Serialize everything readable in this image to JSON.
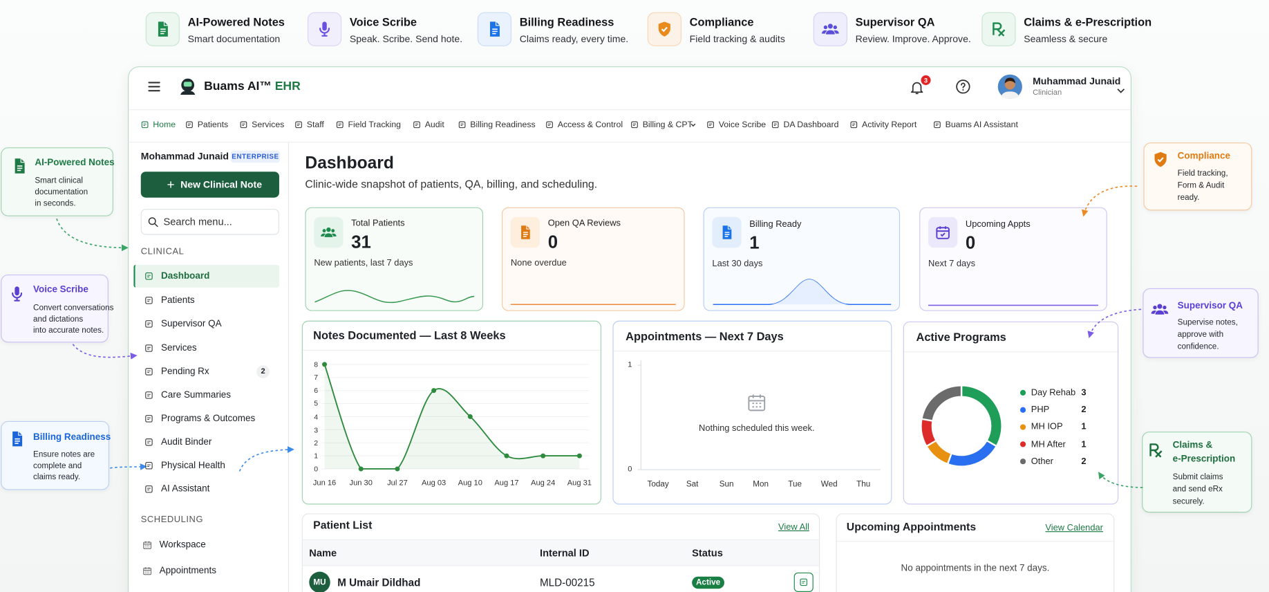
{
  "features": [
    {
      "title": "AI-Powered Notes",
      "subtitle": "Smart documentation"
    },
    {
      "title": "Voice Scribe",
      "subtitle": "Speak. Scribe. Send hote."
    },
    {
      "title": "Billing Readiness",
      "subtitle": "Claims ready, every time."
    },
    {
      "title": "Compliance",
      "subtitle": "Field tracking & audits"
    },
    {
      "title": "Supervisor QA",
      "subtitle": "Review. Improve. Approve."
    },
    {
      "title": "Claims & e-Prescription",
      "subtitle": "Seamless & secure"
    }
  ],
  "callouts": [
    {
      "title_lines": [
        "AI-Powered Notes"
      ],
      "lines": [
        "Smart clinical",
        "documentation",
        "in seconds."
      ]
    },
    {
      "title_lines": [
        "Voice Scribe"
      ],
      "lines": [
        "Convert conversations",
        "and dictations",
        "into accurate notes."
      ]
    },
    {
      "title_lines": [
        "Billing Readiness"
      ],
      "lines": [
        "Ensure notes are",
        "complete and",
        "claims ready."
      ]
    },
    {
      "title_lines": [
        "Compliance"
      ],
      "lines": [
        "Field tracking,",
        "Form & Audit",
        "ready."
      ]
    },
    {
      "title_lines": [
        "Supervisor QA"
      ],
      "lines": [
        "Supervise notes,",
        "approve with",
        "confidence."
      ]
    },
    {
      "title_lines": [
        "Claims &",
        "e-Prescription"
      ],
      "lines": [
        "Submit claims",
        "and send eRx",
        "securely."
      ]
    }
  ],
  "header": {
    "brand": "Buams AI™",
    "brand_suffix": "EHR",
    "notifications": 3,
    "user_name": "Muhammad Junaid",
    "user_role": "Clinician"
  },
  "nav": [
    "Home",
    "Patients",
    "Services",
    "Staff",
    "Field Tracking",
    "Audit",
    "Billing Readiness",
    "Access & Control",
    "Billing & CPT",
    "Voice Scribe",
    "DA Dashboard",
    "Activity Report",
    "Buams AI Assistant"
  ],
  "sidebar": {
    "user": "Mohammad Junaid",
    "plan": "ENTERPRISE",
    "new_note": "New Clinical Note",
    "search": "Search menu...",
    "sections": [
      {
        "heading": "CLINICAL",
        "items": [
          {
            "label": "Dashboard"
          },
          {
            "label": "Patients"
          },
          {
            "label": "Supervisor QA"
          },
          {
            "label": "Services"
          },
          {
            "label": "Pending Rx",
            "count": 2
          },
          {
            "label": "Care Summaries"
          },
          {
            "label": "Programs & Outcomes"
          },
          {
            "label": "Audit Binder"
          },
          {
            "label": "Physical Health"
          },
          {
            "label": "AI Assistant"
          }
        ]
      },
      {
        "heading": "SCHEDULING",
        "items": [
          {
            "label": "Workspace"
          },
          {
            "label": "Appointments"
          }
        ]
      }
    ]
  },
  "dashboard": {
    "title": "Dashboard",
    "subtitle": "Clinic-wide snapshot of patients, QA, billing, and scheduling."
  },
  "stats": [
    {
      "label": "Total Patients",
      "value": 31,
      "note": "New patients, last 7 days"
    },
    {
      "label": "Open QA Reviews",
      "value": 0,
      "note": "None overdue"
    },
    {
      "label": "Billing Ready",
      "value": 1,
      "note": "Last 30 days"
    },
    {
      "label": "Upcoming Appts",
      "value": 0,
      "note": "Next 7 days"
    }
  ],
  "chart_data": [
    {
      "type": "line",
      "title": "Notes Documented — Last 8 Weeks",
      "categories": [
        "Jun 16",
        "Jun 30",
        "Jul 27",
        "Aug 03",
        "Aug 10",
        "Aug 17",
        "Aug 24",
        "Aug 31"
      ],
      "values": [
        8,
        0,
        0,
        6,
        4,
        1,
        1,
        1
      ],
      "color": "#2e8b3e",
      "ylim": [
        0,
        8
      ],
      "yticks": [
        0,
        1,
        2,
        3,
        4,
        5,
        6,
        7,
        8
      ],
      "grid": true
    },
    {
      "type": "bar",
      "title": "Appointments — Next 7 Days",
      "categories": [
        "Today",
        "Sat",
        "Sun",
        "Mon",
        "Tue",
        "Wed",
        "Thu"
      ],
      "ylim": [
        0,
        1
      ],
      "yticks": [
        0,
        1
      ],
      "message": "Nothing scheduled this week."
    },
    {
      "type": "pie",
      "title": "Active Programs",
      "categories": [
        "Day Rehab",
        "PHP",
        "MH IOP",
        "MH After",
        "Other"
      ],
      "values": [
        3,
        2,
        1,
        1,
        2
      ],
      "colors": [
        "#1e9e58",
        "#2a6ff0",
        "#e8900f",
        "#dd2a2a",
        "#6b6b6b"
      ],
      "legend": "right"
    }
  ],
  "patient_list": {
    "title": "Patient List",
    "link": "View All",
    "columns": [
      "Name",
      "Internal ID",
      "Status"
    ],
    "rows": [
      {
        "initials": "MU",
        "name": "M Umair Dildhad",
        "id": "MLD-00215",
        "status": "Active"
      }
    ]
  },
  "upcoming": {
    "title": "Upcoming Appointments",
    "link": "View Calendar",
    "empty": "No appointments in the next 7 days."
  }
}
